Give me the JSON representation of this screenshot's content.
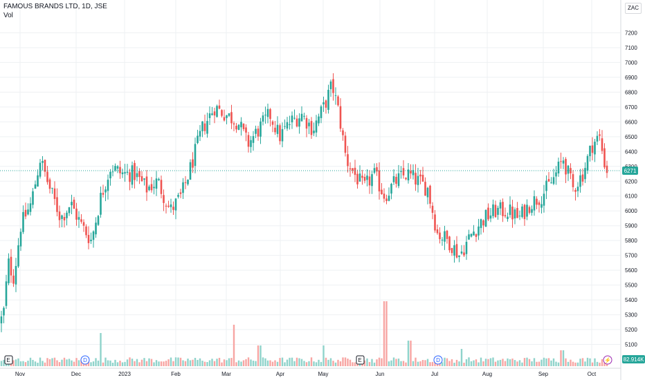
{
  "title": "FAMOUS BRANDS LTD, 1D, JSE",
  "volume_label": "Vol",
  "currency": "ZAC",
  "colors": {
    "up": "#26a69a",
    "down": "#ef5350",
    "up_vol": "#8fd3cb",
    "down_vol": "#f7a5a3",
    "grid": "#eef0f3",
    "axis_text": "#131722",
    "dotted_line": "#26a69a"
  },
  "chart_data": {
    "type": "candlestick",
    "title": "FAMOUS BRANDS LTD, 1D, JSE",
    "ylim": [
      5000,
      7300
    ],
    "y_ticks": [
      7200,
      7100,
      7000,
      6900,
      6800,
      6700,
      6600,
      6500,
      6400,
      6300,
      6200,
      6100,
      6000,
      5900,
      5800,
      5700,
      5600,
      5500,
      5400,
      5300,
      5200,
      5100
    ],
    "x_ticks": [
      "Nov",
      "Dec",
      "2023",
      "Feb",
      "Mar",
      "Apr",
      "May",
      "Jun",
      "Jul",
      "Aug",
      "Sep",
      "Oct"
    ],
    "last_price": 6271,
    "last_volume_label": "82.914K",
    "event_markers": [
      {
        "type": "earnings",
        "symbol": "E"
      },
      {
        "type": "dividend",
        "symbol": "D"
      },
      {
        "type": "earnings",
        "symbol": "E"
      },
      {
        "type": "dividend",
        "symbol": "D"
      },
      {
        "type": "split",
        "symbol": "⚡"
      }
    ],
    "price_anchors": [
      [
        0,
        5250
      ],
      [
        5,
        5300
      ],
      [
        12,
        5650
      ],
      [
        20,
        5550
      ],
      [
        30,
        5900
      ],
      [
        45,
        6050
      ],
      [
        58,
        6350
      ],
      [
        72,
        6150
      ],
      [
        88,
        5950
      ],
      [
        102,
        6050
      ],
      [
        118,
        5900
      ],
      [
        132,
        5800
      ],
      [
        146,
        6100
      ],
      [
        160,
        6300
      ],
      [
        176,
        6250
      ],
      [
        194,
        6250
      ],
      [
        212,
        6150
      ],
      [
        228,
        6200
      ],
      [
        246,
        6000
      ],
      [
        262,
        6100
      ],
      [
        276,
        6300
      ],
      [
        292,
        6550
      ],
      [
        310,
        6700
      ],
      [
        326,
        6650
      ],
      [
        344,
        6600
      ],
      [
        358,
        6450
      ],
      [
        374,
        6550
      ],
      [
        390,
        6650
      ],
      [
        404,
        6500
      ],
      [
        420,
        6600
      ],
      [
        436,
        6650
      ],
      [
        452,
        6550
      ],
      [
        468,
        6700
      ],
      [
        480,
        6850
      ],
      [
        490,
        6650
      ],
      [
        500,
        6350
      ],
      [
        512,
        6250
      ],
      [
        526,
        6150
      ],
      [
        540,
        6250
      ],
      [
        556,
        6100
      ],
      [
        572,
        6200
      ],
      [
        588,
        6250
      ],
      [
        604,
        6200
      ],
      [
        618,
        6150
      ],
      [
        632,
        5850
      ],
      [
        648,
        5800
      ],
      [
        664,
        5700
      ],
      [
        682,
        5850
      ],
      [
        700,
        5950
      ],
      [
        716,
        6000
      ],
      [
        734,
        6000
      ],
      [
        750,
        5950
      ],
      [
        766,
        6050
      ],
      [
        782,
        6100
      ],
      [
        798,
        6200
      ],
      [
        814,
        6350
      ],
      [
        828,
        6150
      ],
      [
        842,
        6250
      ],
      [
        856,
        6450
      ],
      [
        866,
        6500
      ],
      [
        876,
        6271
      ]
    ],
    "volume_spikes": [
      [
        145,
        0.48
      ],
      [
        338,
        0.6
      ],
      [
        375,
        0.3
      ],
      [
        467,
        0.3
      ],
      [
        557,
        0.94
      ],
      [
        592,
        0.37
      ],
      [
        666,
        0.25
      ],
      [
        812,
        0.23
      ]
    ]
  }
}
